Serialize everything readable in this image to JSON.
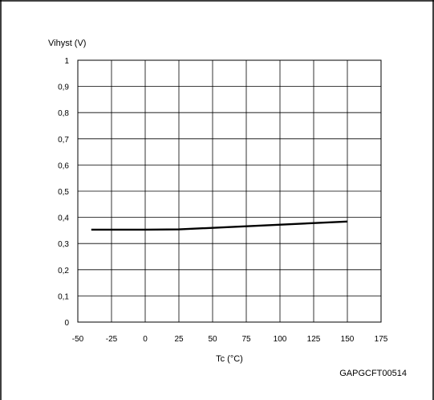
{
  "chart_data": {
    "type": "line",
    "ylabel": "Vihyst (V)",
    "xlabel": "Tc (°C)",
    "figure_id": "GAPGCFT00514",
    "xlim": [
      -50,
      175
    ],
    "ylim": [
      0,
      1
    ],
    "x_ticks": [
      "-50",
      "-25",
      "0",
      "25",
      "50",
      "75",
      "100",
      "125",
      "150",
      "175"
    ],
    "x_tick_values": [
      -50,
      -25,
      0,
      25,
      50,
      75,
      100,
      125,
      150,
      175
    ],
    "y_ticks": [
      "0",
      "0,1",
      "0,2",
      "0,3",
      "0,4",
      "0,5",
      "0,6",
      "0,7",
      "0,8",
      "0,9",
      "1"
    ],
    "y_tick_values": [
      0,
      0.1,
      0.2,
      0.3,
      0.4,
      0.5,
      0.6,
      0.7,
      0.8,
      0.9,
      1
    ],
    "grid": true,
    "series": [
      {
        "x": [
          -40,
          0,
          25,
          150
        ],
        "y": [
          0.353,
          0.353,
          0.354,
          0.384
        ],
        "color": "#000000"
      }
    ]
  }
}
